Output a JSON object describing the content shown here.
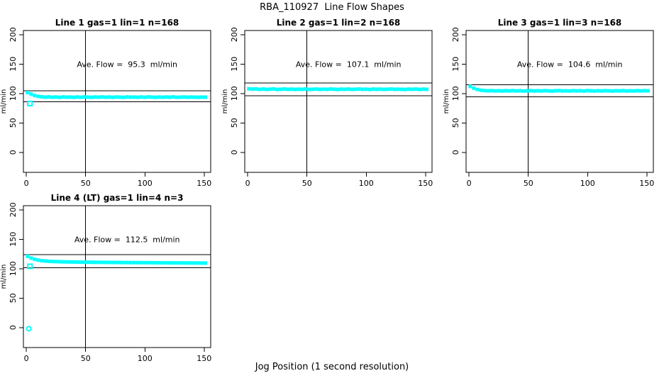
{
  "page_title": "RBA_110927  Line Flow Shapes",
  "colors": {
    "point": "#00FFFF",
    "axis": "#000000",
    "background": "#FFFFFF"
  },
  "chart_data": {
    "type": "scatter",
    "layout": "4 panels: 3 top row, 1 bottom-left",
    "xlabel": "Jog Position (1 second resolution)",
    "ylabel": "ml/min",
    "xticks": [
      0,
      50,
      100,
      150
    ],
    "yticks": [
      0,
      50,
      100,
      150,
      200
    ],
    "xlim": [
      -2.5,
      155.5
    ],
    "ylim": [
      -34,
      207
    ],
    "vline_x": 50,
    "point_color": "#00FFFF",
    "x": [
      1,
      4,
      7,
      10,
      13,
      16,
      19,
      22,
      25,
      28,
      31,
      34,
      37,
      40,
      43,
      46,
      49,
      52,
      55,
      58,
      61,
      64,
      67,
      70,
      73,
      76,
      79,
      82,
      85,
      88,
      91,
      94,
      97,
      100,
      103,
      106,
      109,
      112,
      115,
      118,
      121,
      124,
      127,
      130,
      133,
      136,
      139,
      142,
      145,
      148,
      151
    ],
    "panels": [
      {
        "title": "Line 1 gas=1 lin=1 n=168",
        "ave_flow": 95.3,
        "ave_flow_label": "Ave. Flow =  95.3  ml/min",
        "ref_lines": [
          104.8,
          85.8
        ],
        "values": [
          101.5,
          99,
          96.5,
          95,
          94.3,
          93.8,
          94.2,
          93.6,
          94,
          93.4,
          94.1,
          93.7,
          93.9,
          93.4,
          94,
          93.6,
          94.2,
          93.8,
          93.5,
          94,
          93.7,
          94.1,
          93.6,
          93.9,
          93.5,
          94,
          93.8,
          93.4,
          94.1,
          93.7,
          93.9,
          93.5,
          94,
          93.6,
          94.2,
          93.8,
          93.5,
          93.9,
          93.6,
          94,
          93.7,
          94.1,
          93.5,
          93.8,
          94,
          93.6,
          93.9,
          93.7,
          93.5,
          93.8,
          93.7
        ],
        "outliers": [
          [
            3,
            83,
            "square"
          ]
        ]
      },
      {
        "title": "Line 2 gas=1 lin=2 n=168",
        "ave_flow": 107.1,
        "ave_flow_label": "Ave. Flow =  107.1  ml/min",
        "ref_lines": [
          117.8,
          96.4
        ],
        "values": [
          108,
          107.4,
          107.8,
          107,
          107.5,
          106.9,
          107.3,
          107.7,
          106.8,
          107.2,
          107.6,
          107,
          107.4,
          106.9,
          107.3,
          107.1,
          107.7,
          106.8,
          107.2,
          107.5,
          106.9,
          107.3,
          107,
          107.6,
          107.2,
          106.8,
          107.4,
          107.1,
          107.5,
          106.9,
          107.2,
          107.6,
          107,
          107.3,
          106.8,
          107.5,
          107.1,
          107.4,
          106.9,
          107.2,
          107.6,
          107,
          107.3,
          107.1,
          106.8,
          107.4,
          107.2,
          107.5,
          106.9,
          107.3,
          107.1
        ],
        "outliers": []
      },
      {
        "title": "Line 3 gas=1 lin=3 n=168",
        "ave_flow": 104.6,
        "ave_flow_label": "Ave. Flow =  104.6  ml/min",
        "ref_lines": [
          115.1,
          94.1
        ],
        "values": [
          112,
          109,
          106.8,
          105.5,
          104.9,
          104.5,
          104.8,
          104.3,
          104.6,
          104.2,
          104.7,
          104.4,
          104.8,
          104.3,
          104.6,
          104.1,
          104.5,
          104.8,
          104.2,
          104.6,
          104.3,
          104.7,
          104.4,
          104.1,
          104.6,
          104.8,
          104.3,
          104.5,
          104.2,
          104.7,
          104.4,
          104.6,
          104.1,
          104.8,
          104.5,
          104.2,
          104.6,
          104.3,
          104.7,
          104.5,
          104.1,
          104.6,
          104.4,
          104.8,
          104.2,
          104.5,
          104.3,
          104.7,
          104.4,
          104.6,
          104.5
        ],
        "outliers": []
      },
      {
        "title": "Line 4 (LT) gas=1 lin=4 n=3",
        "ave_flow": 112.5,
        "ave_flow_label": "Ave. Flow =  112.5  ml/min",
        "ref_lines": [
          123.8,
          101.3
        ],
        "values": [
          121,
          118,
          116,
          114.5,
          113.5,
          113,
          112.5,
          112.2,
          112,
          111.8,
          111.6,
          111.5,
          111.4,
          111.3,
          111.2,
          111.1,
          111,
          111,
          110.9,
          110.8,
          110.8,
          110.7,
          110.7,
          110.6,
          110.6,
          110.5,
          110.5,
          110.4,
          110.4,
          110.3,
          110.3,
          110.3,
          110.2,
          110.2,
          110.1,
          110.1,
          110,
          110,
          110,
          109.9,
          109.9,
          109.8,
          109.8,
          109.8,
          109.7,
          109.7,
          109.7,
          109.6,
          109.6,
          109.5,
          109.5
        ],
        "outliers": [
          [
            3,
            104,
            "square"
          ],
          [
            2,
            -2,
            "circle"
          ]
        ]
      }
    ]
  }
}
